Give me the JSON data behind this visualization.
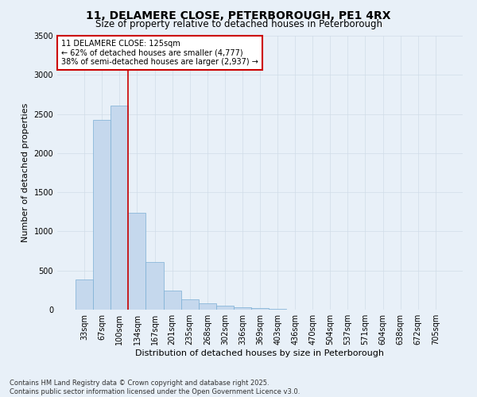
{
  "title": "11, DELAMERE CLOSE, PETERBOROUGH, PE1 4RX",
  "subtitle": "Size of property relative to detached houses in Peterborough",
  "xlabel": "Distribution of detached houses by size in Peterborough",
  "ylabel": "Number of detached properties",
  "categories": [
    "33sqm",
    "67sqm",
    "100sqm",
    "134sqm",
    "167sqm",
    "201sqm",
    "235sqm",
    "268sqm",
    "302sqm",
    "336sqm",
    "369sqm",
    "403sqm",
    "436sqm",
    "470sqm",
    "504sqm",
    "537sqm",
    "571sqm",
    "604sqm",
    "638sqm",
    "672sqm",
    "705sqm"
  ],
  "values": [
    390,
    2420,
    2610,
    1240,
    610,
    240,
    130,
    80,
    55,
    30,
    20,
    10,
    5,
    3,
    2,
    1,
    0,
    0,
    0,
    0,
    0
  ],
  "bar_color": "#c5d8ed",
  "bar_edgecolor": "#7bafd4",
  "vline_color": "#cc0000",
  "annotation_text": "11 DELAMERE CLOSE: 125sqm\n← 62% of detached houses are smaller (4,777)\n38% of semi-detached houses are larger (2,937) →",
  "annotation_box_facecolor": "#ffffff",
  "annotation_box_edgecolor": "#cc0000",
  "grid_color": "#d0dce8",
  "background_color": "#e8f0f8",
  "ylim": [
    0,
    3500
  ],
  "yticks": [
    0,
    500,
    1000,
    1500,
    2000,
    2500,
    3000,
    3500
  ],
  "footer_line1": "Contains HM Land Registry data © Crown copyright and database right 2025.",
  "footer_line2": "Contains public sector information licensed under the Open Government Licence v3.0.",
  "title_fontsize": 10,
  "subtitle_fontsize": 8.5,
  "axis_label_fontsize": 8,
  "tick_fontsize": 7,
  "annotation_fontsize": 7,
  "footer_fontsize": 6
}
